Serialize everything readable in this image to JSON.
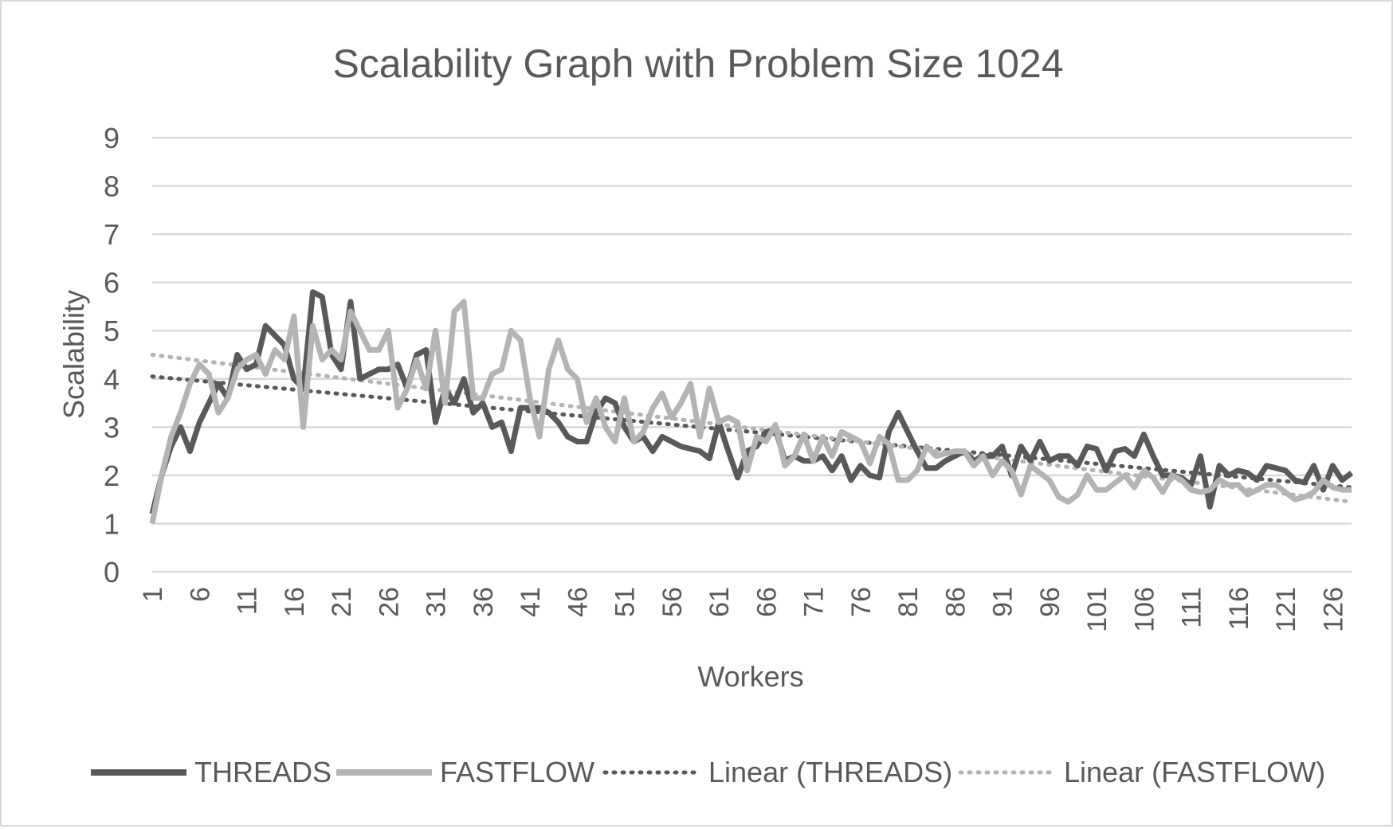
{
  "chart_data": {
    "type": "line",
    "title": "Scalability Graph with Problem Size  1024",
    "xlabel": "Workers",
    "ylabel": "Scalability",
    "ylim": [
      0,
      9
    ],
    "yticks": [
      0,
      1,
      2,
      3,
      4,
      5,
      6,
      7,
      8,
      9
    ],
    "x_range": [
      1,
      128
    ],
    "xtick_labels": [
      "1",
      "6",
      "11",
      "16",
      "21",
      "26",
      "31",
      "36",
      "41",
      "46",
      "51",
      "56",
      "61",
      "66",
      "71",
      "76",
      "81",
      "86",
      "91",
      "96",
      "101",
      "106",
      "111",
      "116",
      "121",
      "126"
    ],
    "grid": true,
    "legend_position": "bottom",
    "colors": {
      "THREADS": "#595959",
      "FASTFLOW": "#b4b4b4",
      "Linear (THREADS)": "#595959",
      "Linear (FASTFLOW)": "#b4b4b4",
      "grid": "#d9d9d9",
      "text": "#595959"
    },
    "series": [
      {
        "name": "THREADS",
        "values": [
          1.2,
          2.0,
          2.6,
          3.0,
          2.5,
          3.1,
          3.5,
          3.9,
          3.6,
          4.5,
          4.2,
          4.3,
          5.1,
          4.9,
          4.7,
          4.0,
          3.8,
          5.8,
          5.7,
          4.5,
          4.2,
          5.6,
          4.0,
          4.1,
          4.2,
          4.2,
          4.3,
          3.8,
          4.5,
          4.6,
          3.1,
          3.8,
          3.5,
          4.0,
          3.3,
          3.5,
          3.0,
          3.1,
          2.5,
          3.4,
          3.4,
          3.4,
          3.3,
          3.1,
          2.8,
          2.7,
          2.7,
          3.3,
          3.6,
          3.5,
          3.0,
          2.7,
          2.8,
          2.5,
          2.8,
          2.7,
          2.6,
          2.55,
          2.5,
          2.35,
          3.1,
          2.5,
          1.95,
          2.5,
          2.6,
          2.9,
          2.95,
          2.3,
          2.4,
          2.3,
          2.3,
          2.4,
          2.1,
          2.4,
          1.9,
          2.2,
          2.0,
          1.95,
          2.9,
          3.3,
          2.9,
          2.5,
          2.15,
          2.15,
          2.3,
          2.4,
          2.5,
          2.3,
          2.4,
          2.4,
          2.6,
          2.0,
          2.6,
          2.3,
          2.7,
          2.3,
          2.4,
          2.4,
          2.2,
          2.6,
          2.55,
          2.1,
          2.5,
          2.55,
          2.4,
          2.85,
          2.4,
          2.0,
          2.0,
          1.95,
          1.8,
          2.4,
          1.35,
          2.2,
          2.0,
          2.1,
          2.05,
          1.9,
          2.2,
          2.15,
          2.1,
          1.9,
          1.85,
          2.2,
          1.7,
          2.2,
          1.9,
          2.05
        ]
      },
      {
        "name": "FASTFLOW",
        "values": [
          1.0,
          2.0,
          2.8,
          3.3,
          3.9,
          4.3,
          4.1,
          3.3,
          3.6,
          4.2,
          4.4,
          4.5,
          4.1,
          4.6,
          4.4,
          5.3,
          3.0,
          5.1,
          4.4,
          4.6,
          4.4,
          5.4,
          5.0,
          4.6,
          4.6,
          5.0,
          3.4,
          3.8,
          4.4,
          3.8,
          5.0,
          3.5,
          5.4,
          5.6,
          3.6,
          3.6,
          4.1,
          4.2,
          5.0,
          4.8,
          3.6,
          2.8,
          4.2,
          4.8,
          4.2,
          4.0,
          3.1,
          3.6,
          3.0,
          2.7,
          3.6,
          2.7,
          2.9,
          3.4,
          3.7,
          3.2,
          3.5,
          3.9,
          2.8,
          3.8,
          3.1,
          3.2,
          3.1,
          2.1,
          2.8,
          2.7,
          3.05,
          2.2,
          2.4,
          2.85,
          2.3,
          2.8,
          2.4,
          2.9,
          2.8,
          2.7,
          2.25,
          2.8,
          2.65,
          1.9,
          1.9,
          2.1,
          2.6,
          2.4,
          2.45,
          2.5,
          2.5,
          2.2,
          2.4,
          2.0,
          2.3,
          2.1,
          1.6,
          2.2,
          2.05,
          1.9,
          1.55,
          1.45,
          1.6,
          2.0,
          1.7,
          1.7,
          1.85,
          2.0,
          1.75,
          2.1,
          1.95,
          1.65,
          2.0,
          1.9,
          1.7,
          1.65,
          1.7,
          1.9,
          1.8,
          1.8,
          1.6,
          1.7,
          1.8,
          1.8,
          1.65,
          1.5,
          1.55,
          1.65,
          1.9,
          1.75,
          1.7,
          1.7
        ]
      },
      {
        "name": "Linear (THREADS)",
        "trendline_of": "THREADS",
        "values": [
          4.05,
          1.75
        ]
      },
      {
        "name": "Linear (FASTFLOW)",
        "trendline_of": "FASTFLOW",
        "values": [
          4.5,
          1.45
        ]
      }
    ]
  }
}
